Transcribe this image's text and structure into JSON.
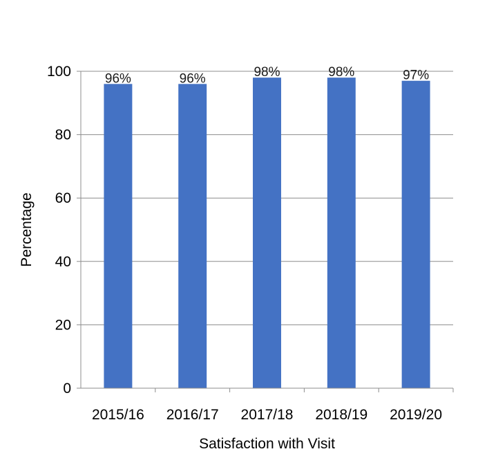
{
  "chart_data": {
    "type": "bar",
    "title": "",
    "xlabel": "Satisfaction with Visit",
    "ylabel": "Percentage",
    "categories": [
      "2015/16",
      "2016/17",
      "2017/18",
      "2018/19",
      "2019/20"
    ],
    "values": [
      96,
      96,
      98,
      98,
      97
    ],
    "data_labels": [
      "96%",
      "96%",
      "98%",
      "98%",
      "97%"
    ],
    "ylim": [
      0,
      100
    ],
    "yticks": [
      0,
      20,
      40,
      60,
      80,
      100
    ],
    "ytick_labels": [
      "0",
      "20",
      "40",
      "60",
      "80",
      "100"
    ],
    "grid": true,
    "legend": "none",
    "colors": {
      "bar": "#4472c4",
      "grid": "#8c8c8c",
      "axis": "#8c8c8c"
    }
  }
}
